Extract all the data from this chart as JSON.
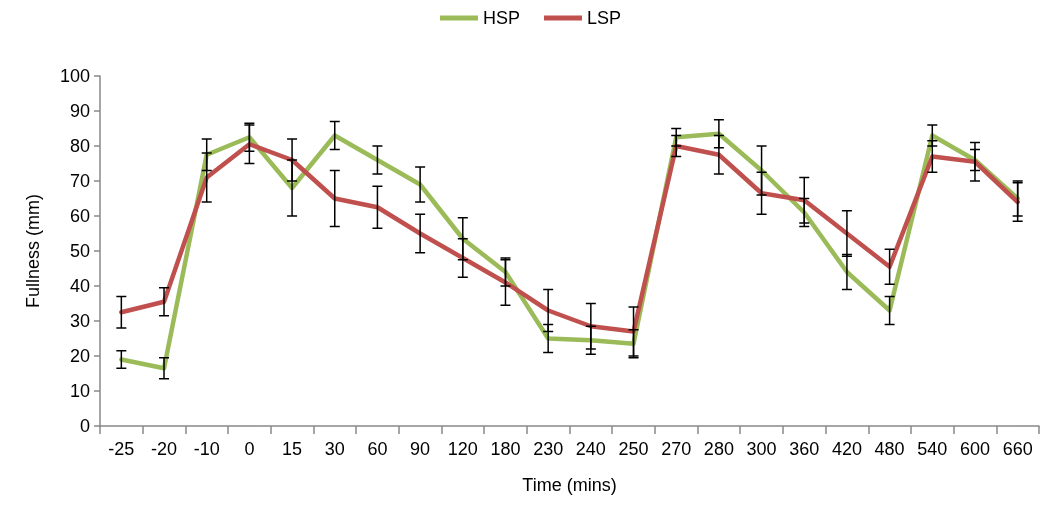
{
  "chart_data": {
    "type": "line",
    "xlabel": "Time (mins)",
    "ylabel": "Fullness (mm)",
    "categories": [
      "-25",
      "-20",
      "-10",
      "0",
      "15",
      "30",
      "60",
      "90",
      "120",
      "180",
      "230",
      "240",
      "250",
      "270",
      "280",
      "300",
      "360",
      "420",
      "480",
      "540",
      "600",
      "660"
    ],
    "series": [
      {
        "name": "HSP",
        "color": "#9bbb59",
        "values": [
          19,
          16.5,
          77.5,
          82.5,
          68,
          83,
          76,
          69,
          53.5,
          44,
          25,
          24.5,
          23.5,
          82.5,
          83.5,
          73,
          61,
          44,
          33,
          83,
          76,
          65
        ],
        "errors": [
          2.5,
          3,
          4.5,
          4,
          8,
          4,
          4,
          5,
          6,
          4,
          4,
          4,
          4,
          2.5,
          4,
          7,
          4,
          5,
          4,
          3,
          3,
          5
        ]
      },
      {
        "name": "LSP",
        "color": "#c0504d",
        "values": [
          32.5,
          35.5,
          71,
          80.5,
          76,
          65,
          62.5,
          55,
          48,
          41,
          33,
          28.5,
          27,
          80,
          77.5,
          66.5,
          64.5,
          55,
          45.5,
          77,
          75.5,
          64
        ],
        "errors": [
          4.5,
          4,
          7,
          5.5,
          6,
          8,
          6,
          5.5,
          5.5,
          6.5,
          6,
          6.5,
          7,
          3,
          5.5,
          6,
          6.5,
          6.5,
          5,
          4.5,
          5.5,
          5.5
        ]
      }
    ],
    "ylim": [
      0,
      100
    ],
    "yticks": [
      0,
      10,
      20,
      30,
      40,
      50,
      60,
      70,
      80,
      90,
      100
    ],
    "grid": false,
    "legend": "top",
    "marker": "none",
    "line_style": "solid"
  }
}
